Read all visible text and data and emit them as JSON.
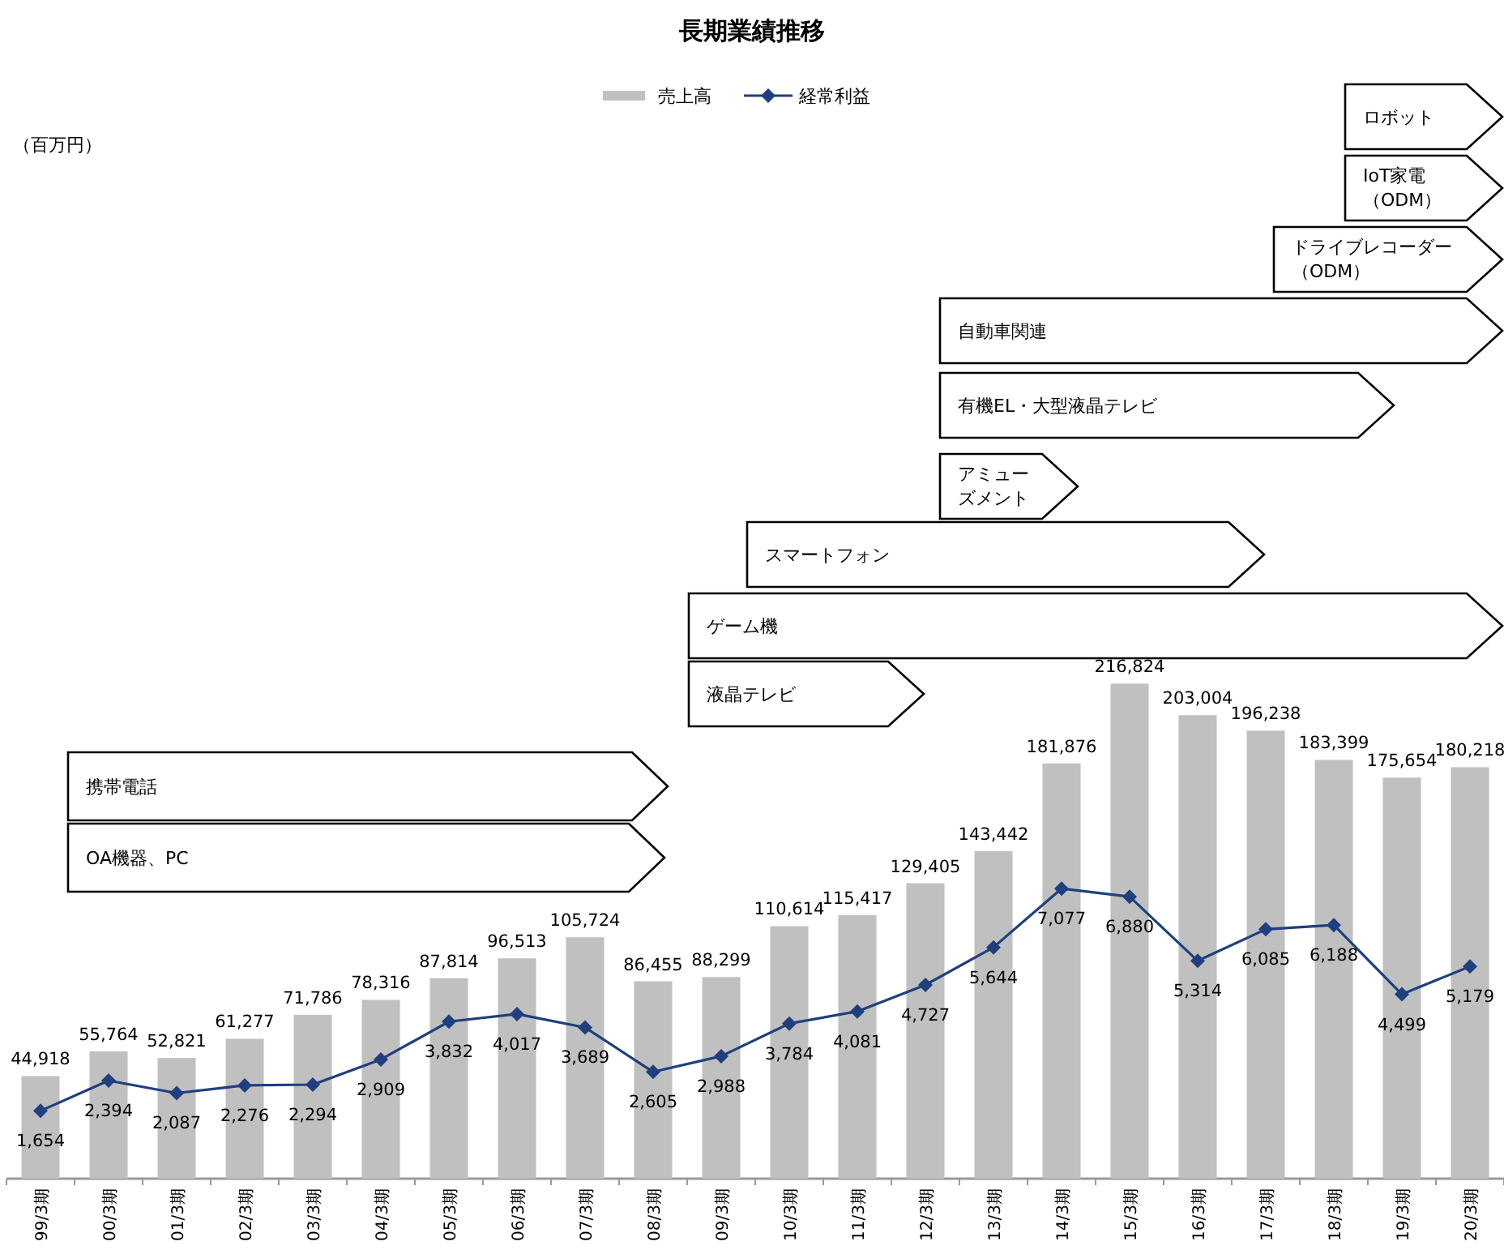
{
  "chart_data": {
    "type": "bar",
    "title": "長期業績推移",
    "legend": "top",
    "tick_labels": "x",
    "marker": "diamond",
    "categories": [
      "99/3期",
      "00/3期",
      "01/3期",
      "02/3期",
      "03/3期",
      "04/3期",
      "05/3期",
      "06/3期",
      "07/3期",
      "08/3期",
      "09/3期",
      "10/3期",
      "11/3期",
      "12/3期",
      "13/3期",
      "14/3期",
      "15/3期",
      "16/3期",
      "17/3期",
      "18/3期",
      "19/3期",
      "20/3期"
    ],
    "series": [
      {
        "name": "売上高",
        "color": "#c0c0c0",
        "values": [
          44918,
          55764,
          52821,
          61277,
          71786,
          78316,
          87814,
          96513,
          105724,
          86455,
          88299,
          110614,
          115417,
          129405,
          143442,
          181876,
          216824,
          203004,
          196238,
          183399,
          175654,
          180218
        ],
        "value_labels": [
          "44,918",
          "55,764",
          "52,821",
          "61,277",
          "71,786",
          "78,316",
          "87,814",
          "96,513",
          "105,724",
          "86,455",
          "88,299",
          "110,614",
          "115,417",
          "129,405",
          "143,442",
          "181,876",
          "216,824",
          "203,004",
          "196,238",
          "183,399",
          "175,654",
          "180,218"
        ]
      },
      {
        "name": "経常利益",
        "type": "line",
        "axis": "y2",
        "color": "#1f3f7f",
        "values": [
          1654,
          2394,
          2087,
          2276,
          2294,
          2909,
          3832,
          4017,
          3689,
          2605,
          2988,
          3784,
          4081,
          4727,
          5644,
          7077,
          6880,
          5314,
          6085,
          6188,
          4499,
          5179
        ],
        "value_labels": [
          "1,654",
          "2,394",
          "2,087",
          "2,276",
          "2,294",
          "2,909",
          "3,832",
          "4,017",
          "3,689",
          "2,605",
          "2,988",
          "3,784",
          "4,081",
          "4,727",
          "5,644",
          "7,077",
          "6,880",
          "5,314",
          "6,085",
          "6,188",
          "4,499",
          "5,179"
        ]
      }
    ],
    "annotations": [
      "（百万円）",
      "ロボット",
      "IoT家電（ODM）",
      "ドライブレコーダー（ODM）",
      "自動車関連",
      "有機EL・大型液晶テレビ",
      "アミューズメント",
      "スマートフォン",
      "ゲーム機",
      "液晶テレビ",
      "携帯電話",
      "OA機器、PC"
    ]
  }
}
